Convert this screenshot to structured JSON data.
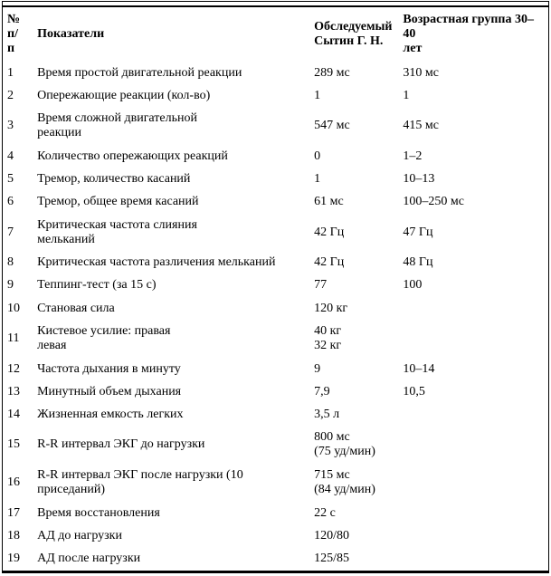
{
  "accent_colors": {
    "text": "#000000",
    "background": "#ffffff",
    "border": "#000000"
  },
  "table": {
    "headers": {
      "num": "№ п/\nп",
      "indicator": "Показатели",
      "subject": "Обследуемый\nСытин Г. Н.",
      "group": "Возрастная группа 30–40\nлет"
    },
    "rows": [
      {
        "num": "1",
        "indicator": "Время простой двигательной реакции",
        "subject": "289 мс",
        "group": "310 мс"
      },
      {
        "num": "2",
        "indicator": "Опережающие реакции (кол-во)",
        "subject": "1",
        "group": "1"
      },
      {
        "num": "3",
        "indicator": "Время сложной двигательной\nреакции",
        "subject": "547 мс",
        "group": "415 мс"
      },
      {
        "num": "4",
        "indicator": "Количество опережающих реакций",
        "subject": "0",
        "group": "1–2"
      },
      {
        "num": "5",
        "indicator": "Тремор, количество касаний",
        "subject": "1",
        "group": "10–13"
      },
      {
        "num": "6",
        "indicator": "Тремор, общее время касаний",
        "subject": "61 мс",
        "group": "100–250 мс"
      },
      {
        "num": "7",
        "indicator": "Критическая частота слияния\nмельканий",
        "subject": "42 Гц",
        "group": "47 Гц"
      },
      {
        "num": "8",
        "indicator": "Критическая частота различения мельканий",
        "subject": "42 Гц",
        "group": "48 Гц"
      },
      {
        "num": "9",
        "indicator": "Теппинг-тест (за 15 с)",
        "subject": "77",
        "group": "100"
      },
      {
        "num": "10",
        "indicator": "Становая сила",
        "subject": "120 кг",
        "group": ""
      },
      {
        "num": "11",
        "indicator": "Кистевое усилие: правая\nлевая",
        "subject": "40 кг\n32 кг",
        "group": ""
      },
      {
        "num": "12",
        "indicator": "Частота дыхания в минуту",
        "subject": "9",
        "group": "10–14"
      },
      {
        "num": "13",
        "indicator": "Минутный объем дыхания",
        "subject": "7,9",
        "group": "10,5"
      },
      {
        "num": "14",
        "indicator": "Жизненная емкость легких",
        "subject": "3,5 л",
        "group": ""
      },
      {
        "num": "15",
        "indicator": "R-R интервал ЭКГ до нагрузки",
        "subject": "800 мс\n(75 уд/мин)",
        "group": ""
      },
      {
        "num": "16",
        "indicator": "R-R интервал ЭКГ после нагрузки (10\nприседаний)",
        "subject": "715 мс\n(84 уд/мин)",
        "group": ""
      },
      {
        "num": "17",
        "indicator": "Время восстановления",
        "subject": "22 с",
        "group": ""
      },
      {
        "num": "18",
        "indicator": "АД до нагрузки",
        "subject": "120/80",
        "group": ""
      },
      {
        "num": "19",
        "indicator": "АД после нагрузки",
        "subject": "125/85",
        "group": ""
      }
    ]
  }
}
